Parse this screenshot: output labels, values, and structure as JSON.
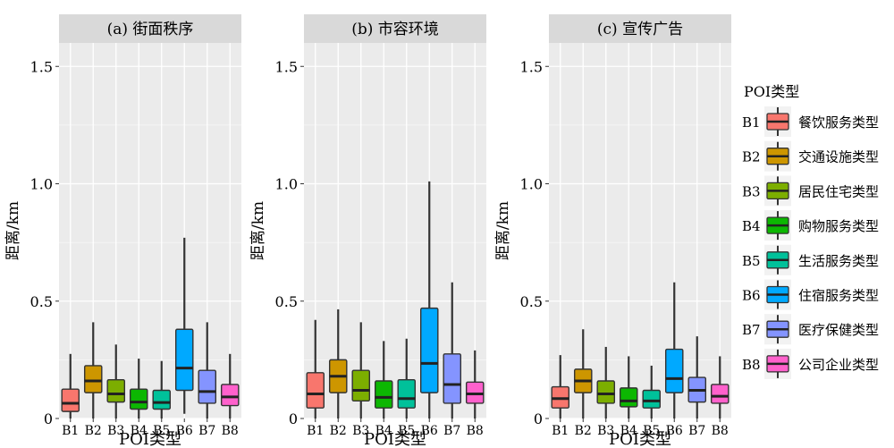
{
  "chart_data": {
    "type": "boxplot",
    "panels": [
      {
        "title": "(a) 街面秩序",
        "ylabel": "距离/km",
        "xlabel": "POI类型",
        "boxes": [
          {
            "category": "B1",
            "min": 0,
            "q1": 0.03,
            "median": 0.065,
            "q3": 0.125,
            "max": 0.275
          },
          {
            "category": "B2",
            "min": 0,
            "q1": 0.11,
            "median": 0.16,
            "q3": 0.225,
            "max": 0.41
          },
          {
            "category": "B3",
            "min": 0,
            "q1": 0.07,
            "median": 0.105,
            "q3": 0.165,
            "max": 0.315
          },
          {
            "category": "B4",
            "min": 0,
            "q1": 0.04,
            "median": 0.07,
            "q3": 0.125,
            "max": 0.255
          },
          {
            "category": "B5",
            "min": 0,
            "q1": 0.04,
            "median": 0.068,
            "q3": 0.12,
            "max": 0.245
          },
          {
            "category": "B6",
            "min": 0.02,
            "q1": 0.12,
            "median": 0.215,
            "q3": 0.38,
            "max": 0.77
          },
          {
            "category": "B7",
            "min": 0,
            "q1": 0.065,
            "median": 0.115,
            "q3": 0.205,
            "max": 0.41
          },
          {
            "category": "B8",
            "min": 0,
            "q1": 0.055,
            "median": 0.092,
            "q3": 0.145,
            "max": 0.275
          }
        ]
      },
      {
        "title": "(b) 市容环境",
        "ylabel": "距离/km",
        "xlabel": "POI类型",
        "boxes": [
          {
            "category": "B1",
            "min": 0,
            "q1": 0.045,
            "median": 0.105,
            "q3": 0.195,
            "max": 0.42
          },
          {
            "category": "B2",
            "min": 0,
            "q1": 0.11,
            "median": 0.18,
            "q3": 0.25,
            "max": 0.465
          },
          {
            "category": "B3",
            "min": 0,
            "q1": 0.075,
            "median": 0.12,
            "q3": 0.205,
            "max": 0.41
          },
          {
            "category": "B4",
            "min": 0,
            "q1": 0.045,
            "median": 0.09,
            "q3": 0.16,
            "max": 0.33
          },
          {
            "category": "B5",
            "min": 0,
            "q1": 0.045,
            "median": 0.085,
            "q3": 0.165,
            "max": 0.34
          },
          {
            "category": "B6",
            "min": 0,
            "q1": 0.11,
            "median": 0.235,
            "q3": 0.47,
            "max": 1.01
          },
          {
            "category": "B7",
            "min": 0,
            "q1": 0.065,
            "median": 0.145,
            "q3": 0.275,
            "max": 0.58
          },
          {
            "category": "B8",
            "min": 0,
            "q1": 0.065,
            "median": 0.105,
            "q3": 0.155,
            "max": 0.29
          }
        ]
      },
      {
        "title": "(c) 宣传广告",
        "ylabel": "距离/km",
        "xlabel": "POI类型",
        "boxes": [
          {
            "category": "B1",
            "min": 0,
            "q1": 0.045,
            "median": 0.085,
            "q3": 0.135,
            "max": 0.27
          },
          {
            "category": "B2",
            "min": 0,
            "q1": 0.11,
            "median": 0.16,
            "q3": 0.21,
            "max": 0.38
          },
          {
            "category": "B3",
            "min": 0,
            "q1": 0.065,
            "median": 0.105,
            "q3": 0.16,
            "max": 0.305
          },
          {
            "category": "B4",
            "min": 0,
            "q1": 0.05,
            "median": 0.075,
            "q3": 0.13,
            "max": 0.265
          },
          {
            "category": "B5",
            "min": 0,
            "q1": 0.045,
            "median": 0.075,
            "q3": 0.12,
            "max": 0.225
          },
          {
            "category": "B6",
            "min": 0,
            "q1": 0.11,
            "median": 0.17,
            "q3": 0.295,
            "max": 0.58
          },
          {
            "category": "B7",
            "min": 0,
            "q1": 0.07,
            "median": 0.12,
            "q3": 0.175,
            "max": 0.35
          },
          {
            "category": "B8",
            "min": 0,
            "q1": 0.065,
            "median": 0.095,
            "q3": 0.145,
            "max": 0.265
          }
        ]
      }
    ],
    "ylim": [
      0,
      1.6
    ],
    "yticks": [
      0,
      0.5,
      1.0,
      1.5
    ],
    "ytick_labels": [
      "0",
      "0.5",
      "1.0",
      "1.5"
    ],
    "categories": [
      "B1",
      "B2",
      "B3",
      "B4",
      "B5",
      "B6",
      "B7",
      "B8"
    ],
    "grid": true,
    "legend": {
      "title": "POI类型",
      "position": "right",
      "items": [
        {
          "code": "B1",
          "label": "餐饮服务类型",
          "color": "#F8766D"
        },
        {
          "code": "B2",
          "label": "交通设施类型",
          "color": "#CD9600"
        },
        {
          "code": "B3",
          "label": "居民住宅类型",
          "color": "#7CAE00"
        },
        {
          "code": "B4",
          "label": "购物服务类型",
          "color": "#0CB702"
        },
        {
          "code": "B5",
          "label": "生活服务类型",
          "color": "#00C19A"
        },
        {
          "code": "B6",
          "label": "住宿服务类型",
          "color": "#00A9FF"
        },
        {
          "code": "B7",
          "label": "医疗保健类型",
          "color": "#8494FF"
        },
        {
          "code": "B8",
          "label": "公司企业类型",
          "color": "#FF61CC"
        }
      ]
    },
    "colors": {
      "panel_background": "#EBEBEB",
      "strip_background": "#D9D9D9",
      "grid_line": "#FFFFFF"
    }
  }
}
